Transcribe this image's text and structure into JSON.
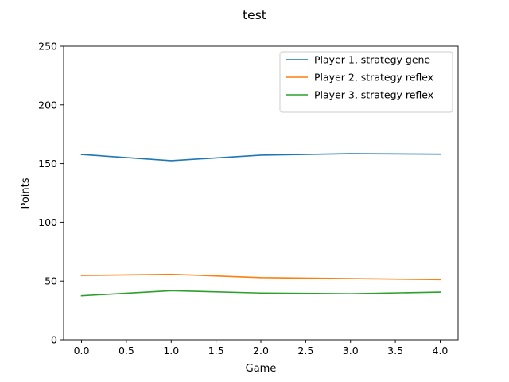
{
  "chart_data": {
    "type": "line",
    "title": "test",
    "xlabel": "Game",
    "ylabel": "Points",
    "x": [
      0,
      1,
      2,
      3,
      4
    ],
    "xlim": [
      -0.2,
      4.2
    ],
    "ylim": [
      0,
      250
    ],
    "x_ticks": [
      "0.0",
      "0.5",
      "1.0",
      "1.5",
      "2.0",
      "2.5",
      "3.0",
      "3.5",
      "4.0"
    ],
    "y_ticks": [
      "0",
      "50",
      "100",
      "150",
      "200",
      "250"
    ],
    "grid": false,
    "legend_position": "top-right",
    "series": [
      {
        "name": "Player 1, strategy gene",
        "color": "#1f77b4",
        "values": [
          157.8,
          152.5,
          157.2,
          158.5,
          158.1
        ]
      },
      {
        "name": "Player 2, strategy reflex",
        "color": "#ff7f0e",
        "values": [
          54.8,
          55.8,
          53.0,
          52.1,
          51.3
        ]
      },
      {
        "name": "Player 3, strategy reflex",
        "color": "#2ca02c",
        "values": [
          37.5,
          41.8,
          39.8,
          39.2,
          40.6
        ]
      }
    ]
  }
}
